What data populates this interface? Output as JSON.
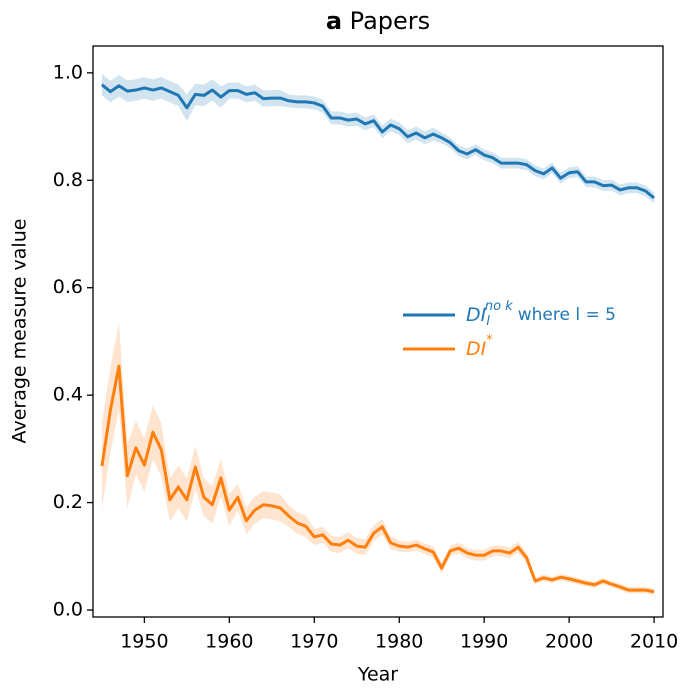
{
  "chart_data": {
    "type": "line",
    "panel_label": "a",
    "title": "Papers",
    "x_label": "Year",
    "y_label": "Average measure value",
    "x": [
      1945,
      1946,
      1947,
      1948,
      1949,
      1950,
      1951,
      1952,
      1953,
      1954,
      1955,
      1956,
      1957,
      1958,
      1959,
      1960,
      1961,
      1962,
      1963,
      1964,
      1965,
      1966,
      1967,
      1968,
      1969,
      1970,
      1971,
      1972,
      1973,
      1974,
      1975,
      1976,
      1977,
      1978,
      1979,
      1980,
      1981,
      1982,
      1983,
      1984,
      1985,
      1986,
      1987,
      1988,
      1989,
      1990,
      1991,
      1992,
      1993,
      1994,
      1995,
      1996,
      1997,
      1998,
      1999,
      2000,
      2001,
      2002,
      2003,
      2004,
      2005,
      2006,
      2007,
      2008,
      2009,
      2010
    ],
    "xlim": [
      1943.95,
      2011.05
    ],
    "xticks": [
      1950,
      1960,
      1970,
      1980,
      1990,
      2000,
      2010
    ],
    "ylim": [
      -0.013,
      1.05
    ],
    "yticks": [
      {
        "value": 0,
        "label": "0.0"
      },
      0.2,
      0.4,
      0.6,
      0.8,
      {
        "value": 1,
        "label": "1.0"
      }
    ],
    "legend": "center right",
    "series": [
      {
        "name": "DI",
        "name_sub": "l",
        "name_sup": "no k",
        "name_note": "where l = 5",
        "color": "#1f77b4",
        "values": [
          0.978,
          0.965,
          0.976,
          0.966,
          0.968,
          0.972,
          0.968,
          0.972,
          0.965,
          0.958,
          0.935,
          0.96,
          0.958,
          0.968,
          0.955,
          0.967,
          0.967,
          0.96,
          0.963,
          0.952,
          0.953,
          0.953,
          0.948,
          0.946,
          0.946,
          0.944,
          0.938,
          0.916,
          0.916,
          0.912,
          0.914,
          0.905,
          0.911,
          0.89,
          0.903,
          0.896,
          0.881,
          0.888,
          0.879,
          0.886,
          0.879,
          0.87,
          0.855,
          0.849,
          0.857,
          0.847,
          0.842,
          0.832,
          0.832,
          0.832,
          0.829,
          0.818,
          0.812,
          0.823,
          0.804,
          0.814,
          0.816,
          0.797,
          0.797,
          0.79,
          0.791,
          0.782,
          0.786,
          0.786,
          0.78,
          0.767
        ],
        "errors": [
          0.02,
          0.02,
          0.02,
          0.02,
          0.02,
          0.02,
          0.02,
          0.02,
          0.02,
          0.02,
          0.025,
          0.02,
          0.02,
          0.02,
          0.02,
          0.015,
          0.015,
          0.015,
          0.015,
          0.015,
          0.015,
          0.015,
          0.012,
          0.012,
          0.012,
          0.012,
          0.012,
          0.012,
          0.012,
          0.012,
          0.012,
          0.012,
          0.012,
          0.012,
          0.012,
          0.012,
          0.012,
          0.012,
          0.012,
          0.012,
          0.01,
          0.01,
          0.01,
          0.01,
          0.01,
          0.01,
          0.01,
          0.01,
          0.01,
          0.01,
          0.01,
          0.01,
          0.01,
          0.01,
          0.01,
          0.01,
          0.01,
          0.01,
          0.01,
          0.01,
          0.01,
          0.01,
          0.01,
          0.01,
          0.01,
          0.01
        ]
      },
      {
        "name": "DI",
        "name_sup": "*",
        "color": "#ff7f0e",
        "values": [
          0.268,
          0.372,
          0.454,
          0.25,
          0.302,
          0.27,
          0.331,
          0.298,
          0.205,
          0.229,
          0.205,
          0.266,
          0.21,
          0.196,
          0.246,
          0.186,
          0.21,
          0.166,
          0.186,
          0.196,
          0.194,
          0.19,
          0.175,
          0.162,
          0.156,
          0.136,
          0.14,
          0.123,
          0.121,
          0.13,
          0.119,
          0.117,
          0.143,
          0.155,
          0.125,
          0.119,
          0.117,
          0.121,
          0.114,
          0.108,
          0.078,
          0.11,
          0.115,
          0.106,
          0.102,
          0.102,
          0.11,
          0.11,
          0.106,
          0.117,
          0.097,
          0.054,
          0.06,
          0.056,
          0.061,
          0.058,
          0.054,
          0.05,
          0.047,
          0.054,
          0.048,
          0.043,
          0.037,
          0.037,
          0.037,
          0.034
        ],
        "errors": [
          0.08,
          0.08,
          0.08,
          0.06,
          0.05,
          0.05,
          0.05,
          0.05,
          0.04,
          0.04,
          0.04,
          0.04,
          0.035,
          0.035,
          0.035,
          0.03,
          0.025,
          0.025,
          0.025,
          0.025,
          0.025,
          0.025,
          0.02,
          0.02,
          0.02,
          0.015,
          0.015,
          0.015,
          0.015,
          0.015,
          0.015,
          0.015,
          0.015,
          0.015,
          0.012,
          0.01,
          0.01,
          0.01,
          0.01,
          0.01,
          0.01,
          0.01,
          0.01,
          0.01,
          0.01,
          0.01,
          0.01,
          0.01,
          0.01,
          0.01,
          0.01,
          0.006,
          0.006,
          0.006,
          0.006,
          0.006,
          0.006,
          0.006,
          0.006,
          0.006,
          0.006,
          0.006,
          0.006,
          0.006,
          0.006,
          0.006
        ]
      }
    ]
  }
}
